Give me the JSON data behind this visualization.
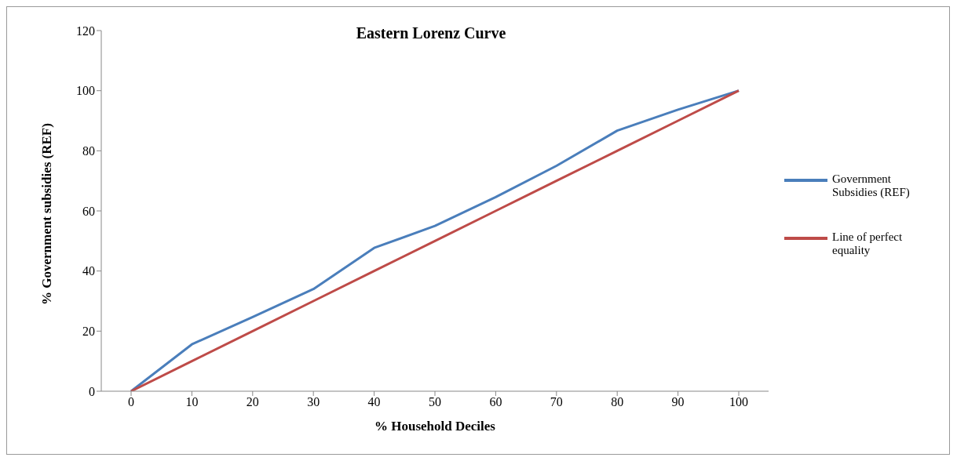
{
  "chart_data": {
    "type": "line",
    "title": "Eastern Lorenz Curve",
    "xlabel": "% Household  Deciles",
    "ylabel": "% Government subsidies  (REF)",
    "categories": [
      "0",
      "10",
      "20",
      "30",
      "40",
      "50",
      "60",
      "70",
      "80",
      "90",
      "100"
    ],
    "series": [
      {
        "name": "Government Subsidies (REF)",
        "color": "#4a7ebb",
        "values": [
          0,
          15.6,
          24.7,
          34,
          47.7,
          55,
          64.6,
          75,
          86.7,
          93.7,
          100
        ]
      },
      {
        "name": "Line of perfect equality",
        "color": "#be4b48",
        "values": [
          0,
          10,
          20,
          30,
          40,
          50,
          60,
          70,
          80,
          90,
          100
        ]
      }
    ],
    "ylim": [
      0,
      120
    ],
    "yticks": [
      0,
      20,
      40,
      60,
      80,
      100,
      120
    ],
    "legend": "right",
    "marker": "none",
    "line_style": "solid"
  }
}
